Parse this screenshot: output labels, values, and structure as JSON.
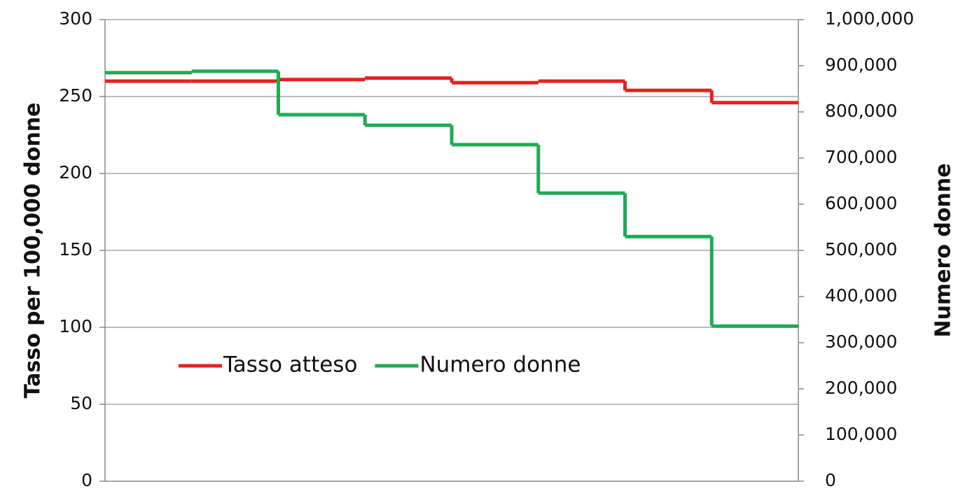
{
  "chart_data": {
    "type": "step",
    "categories": [
      null,
      null,
      null,
      null,
      null,
      null,
      null,
      null
    ],
    "y_label": "Tasso per 100,000 donne",
    "y2_label": "Numero donne",
    "series": [
      {
        "name": "Tasso atteso",
        "color": "#e8201f",
        "values": [
          260,
          260,
          261,
          262,
          259,
          260,
          254,
          246
        ]
      },
      {
        "name": "Numero donne",
        "color": "#1faa55",
        "axis": "y2",
        "values": [
          885000,
          888000,
          794000,
          771000,
          729000,
          624000,
          530000,
          336000
        ]
      }
    ],
    "ylim": [
      0,
      300
    ],
    "yticks": [
      0,
      50,
      100,
      150,
      200,
      250,
      300
    ],
    "y2lim": [
      0,
      1000000
    ],
    "y2ticks": [
      0,
      {
        "value": 100000,
        "label": "100,000"
      },
      {
        "value": 200000,
        "label": "200,000"
      },
      {
        "value": 300000,
        "label": "300,000"
      },
      {
        "value": 400000,
        "label": "400,000"
      },
      {
        "value": 500000,
        "label": "500,000"
      },
      {
        "value": 600000,
        "label": "600,000"
      },
      {
        "value": 700000,
        "label": "700,000"
      },
      {
        "value": 800000,
        "label": "800,000"
      },
      {
        "value": 900000,
        "label": "900,000"
      },
      {
        "value": 1000000,
        "label": "1,000,000"
      }
    ],
    "grid": true,
    "legend": "inside"
  }
}
